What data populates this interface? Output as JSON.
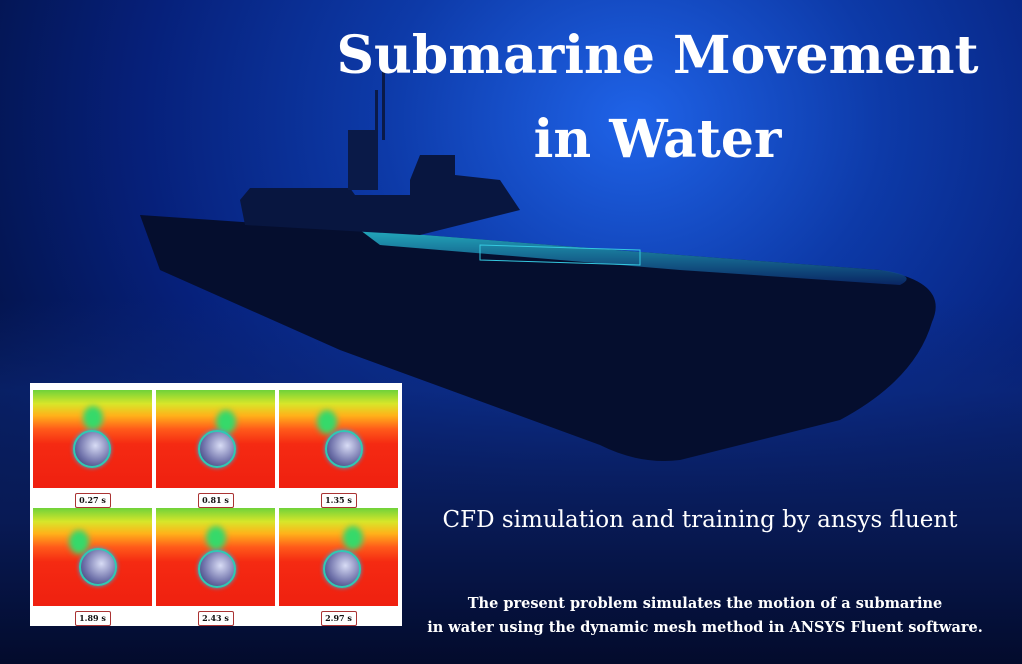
{
  "title_line1": "Submarine Movement",
  "title_line2": "in Water",
  "subtitle": "CFD simulation and training by ansys fluent",
  "description_line1": "The present problem simulates the motion of a submarine",
  "description_line2": "in water using the dynamic mesh method in ANSYS Fluent software.",
  "snapshots": [
    {
      "time": "0.27 s"
    },
    {
      "time": "0.81 s"
    },
    {
      "time": "1.35 s"
    },
    {
      "time": "1.89 s"
    },
    {
      "time": "2.43 s"
    },
    {
      "time": "2.97 s"
    }
  ]
}
